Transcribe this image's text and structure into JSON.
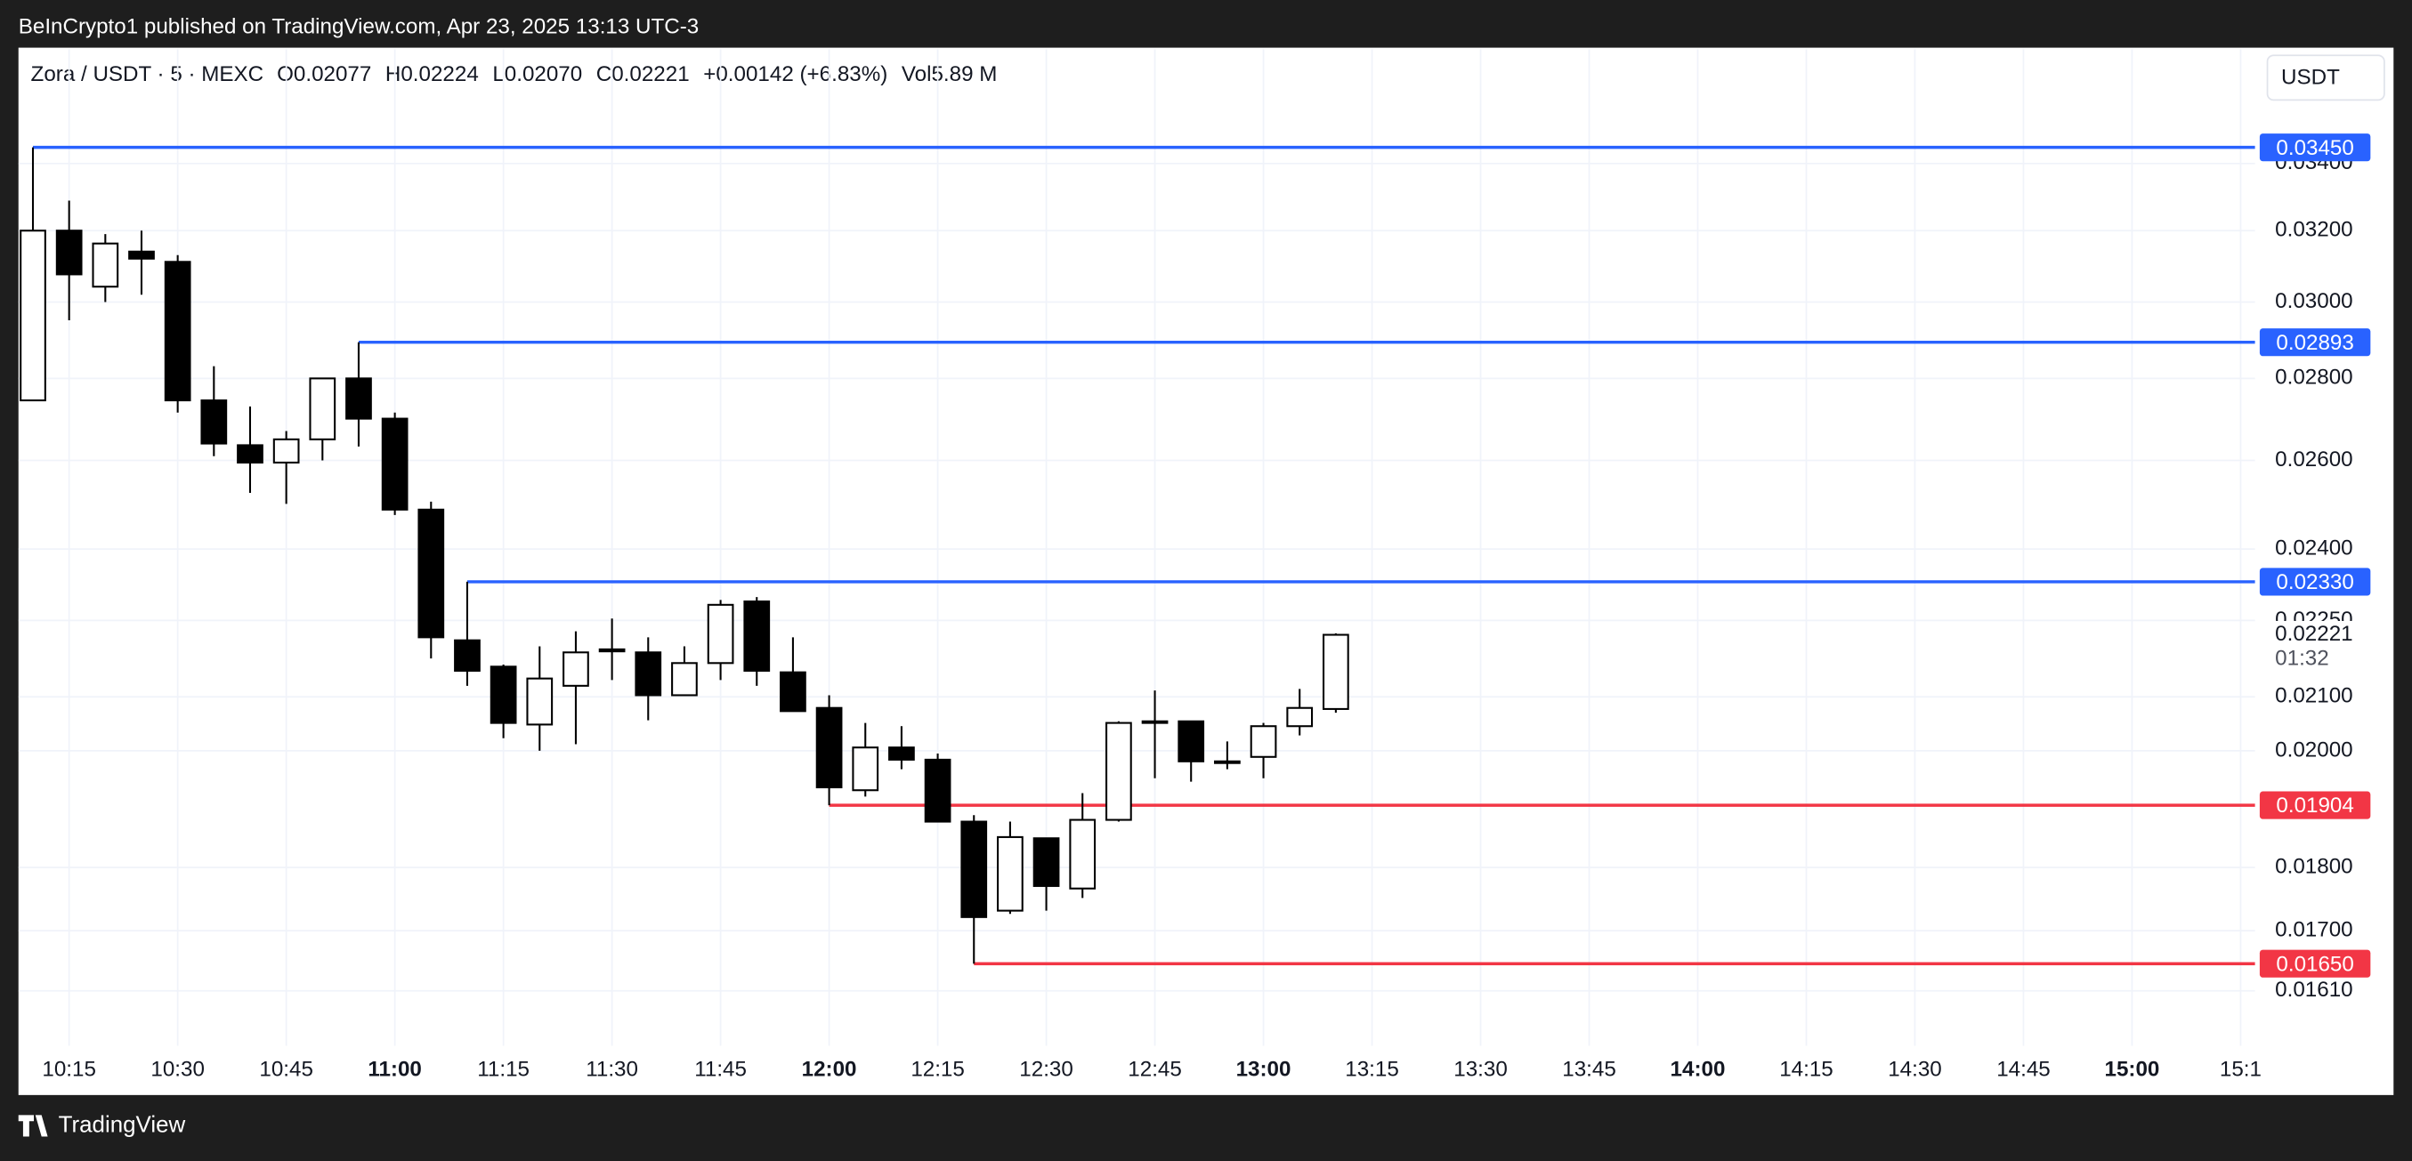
{
  "header": {
    "published": "BeInCrypto1 published on TradingView.com, Apr 23, 2025 13:13 UTC-3",
    "brand": "TradingView",
    "currency_button": "USDT"
  },
  "chart_data": {
    "type": "candlestick",
    "title": "Zora / USDT · 5 · MEXC",
    "header_stats": [
      "O0.02077",
      "H0.02224",
      "L0.02070",
      "C0.02221",
      "+0.00142 (+6.83%)",
      "Vol5.89 M"
    ],
    "x": [
      "10:10",
      "10:15",
      "10:20",
      "10:25",
      "10:30",
      "10:35",
      "10:40",
      "10:45",
      "10:50",
      "10:55",
      "11:00",
      "11:05",
      "11:10",
      "11:15",
      "11:20",
      "11:25",
      "11:30",
      "11:35",
      "11:40",
      "11:45",
      "11:50",
      "11:55",
      "12:00",
      "12:05",
      "12:10",
      "12:15",
      "12:20",
      "12:25",
      "12:30",
      "12:35",
      "12:40",
      "12:45",
      "12:50",
      "12:55",
      "13:00",
      "13:05",
      "13:10"
    ],
    "open": [
      0.02745,
      0.032,
      0.03042,
      0.0314,
      0.03111,
      0.02745,
      0.02636,
      0.02595,
      0.0265,
      0.028,
      0.027,
      0.02487,
      0.0221,
      0.02158,
      0.02048,
      0.02121,
      0.02192,
      0.02186,
      0.02103,
      0.02165,
      0.02289,
      0.02147,
      0.02079,
      0.0193,
      0.02006,
      0.01984,
      0.01876,
      0.01731,
      0.01848,
      0.01766,
      0.01879,
      0.02051,
      0.02054,
      0.01978,
      0.01989,
      0.02045,
      0.02077
    ],
    "high": [
      0.0345,
      0.03288,
      0.0319,
      0.032,
      0.0313,
      0.02831,
      0.0273,
      0.0267,
      0.028,
      0.02893,
      0.02715,
      0.02505,
      0.0233,
      0.02162,
      0.02198,
      0.02228,
      0.02254,
      0.02216,
      0.02198,
      0.02292,
      0.02298,
      0.02216,
      0.02103,
      0.02051,
      0.02045,
      0.01995,
      0.01887,
      0.01876,
      0.01848,
      0.01925,
      0.02054,
      0.02112,
      0.02054,
      0.02017,
      0.02051,
      0.02115,
      0.02224
    ],
    "low": [
      0.02745,
      0.02951,
      0.03,
      0.0302,
      0.02715,
      0.0261,
      0.02525,
      0.025,
      0.026,
      0.02633,
      0.02475,
      0.02174,
      0.02121,
      0.02023,
      0.02,
      0.02012,
      0.02132,
      0.02056,
      0.02103,
      0.02132,
      0.02121,
      0.02073,
      0.01904,
      0.01919,
      0.01967,
      0.01876,
      0.0165,
      0.01726,
      0.01731,
      0.01751,
      0.01876,
      0.01951,
      0.01945,
      0.01967,
      0.01951,
      0.02028,
      0.0207
    ],
    "close": [
      0.032,
      0.03076,
      0.03163,
      0.0312,
      0.02745,
      0.0264,
      0.02595,
      0.0265,
      0.028,
      0.027,
      0.02487,
      0.02216,
      0.0215,
      0.02051,
      0.02135,
      0.02186,
      0.02188,
      0.02103,
      0.02165,
      0.02282,
      0.0215,
      0.02073,
      0.01935,
      0.02006,
      0.01984,
      0.01876,
      0.01721,
      0.0185,
      0.0177,
      0.01879,
      0.02051,
      0.02054,
      0.01981,
      0.01981,
      0.02045,
      0.02079,
      0.02221
    ],
    "up_color": "#ffffff",
    "down_color": "#000000",
    "xlim": [
      "10:08",
      "15:17"
    ],
    "xticks": [
      "10:15",
      "10:30",
      "10:45",
      "11:00",
      "11:15",
      "11:30",
      "11:45",
      "12:00",
      "12:15",
      "12:30",
      "12:45",
      "13:00",
      "13:15",
      "13:30",
      "13:45",
      "14:00",
      "14:15",
      "14:30",
      "14:45",
      "15:00",
      {
        "value": "15:15",
        "label": "15:1"
      }
    ],
    "ylim": [
      0.01532,
      0.0377
    ],
    "y_scale": "log",
    "yticks": [
      {
        "value": 0.034,
        "label": "0.03400"
      },
      {
        "value": 0.032,
        "label": "0.03200"
      },
      {
        "value": 0.03,
        "label": "0.03000"
      },
      {
        "value": 0.028,
        "label": "0.02800"
      },
      {
        "value": 0.026,
        "label": "0.02600"
      },
      {
        "value": 0.024,
        "label": "0.02400"
      },
      {
        "value": 0.0225,
        "label": "0.02250"
      },
      {
        "value": 0.021,
        "label": "0.02100"
      },
      {
        "value": 0.02,
        "label": "0.02000"
      },
      {
        "value": 0.018,
        "label": "0.01800"
      },
      {
        "value": 0.017,
        "label": "0.01700"
      },
      {
        "value": 0.0161,
        "label": "0.01610"
      }
    ],
    "grid": true,
    "levels": [
      {
        "value": 0.0345,
        "label": "0.03450",
        "from": "10:10",
        "color": "#2962ff"
      },
      {
        "value": 0.02893,
        "label": "0.02893",
        "from": "10:55",
        "color": "#2962ff"
      },
      {
        "value": 0.0233,
        "label": "0.02330",
        "from": "11:10",
        "color": "#2962ff"
      },
      {
        "value": 0.01904,
        "label": "0.01904",
        "from": "12:00",
        "color": "#f23645"
      },
      {
        "value": 0.0165,
        "label": "0.01650",
        "from": "12:20",
        "color": "#f23645"
      }
    ],
    "last_price": 0.02221,
    "countdown": "01:32"
  }
}
